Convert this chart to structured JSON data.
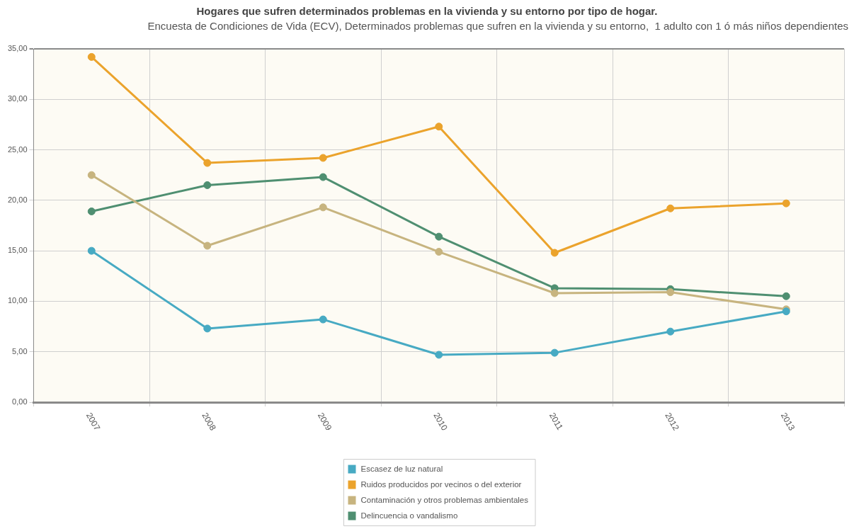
{
  "chart_data": {
    "type": "line",
    "title": "Hogares que sufren determinados problemas en la vivienda y su entorno por tipo de hogar.",
    "subtitle": "Encuesta de Condiciones de Vida (ECV), Determinados problemas que sufren en la vivienda y su entorno,  1 adulto con 1 ó más niños dependientes",
    "categories": [
      "2007",
      "2008",
      "2009",
      "2010",
      "2011",
      "2012",
      "2013"
    ],
    "series": [
      {
        "name": "Escasez de luz natural",
        "color": "#47aac3",
        "values": [
          15.0,
          7.3,
          8.2,
          4.7,
          4.9,
          7.0,
          9.0
        ]
      },
      {
        "name": "Ruidos producidos por vecinos o del exterior",
        "color": "#eba32c",
        "values": [
          34.2,
          23.7,
          24.2,
          27.3,
          14.8,
          19.2,
          19.7
        ]
      },
      {
        "name": "Contaminación y otros problemas ambientales",
        "color": "#c7b47f",
        "values": [
          22.5,
          15.5,
          19.3,
          14.9,
          10.8,
          10.9,
          9.2
        ]
      },
      {
        "name": "Delincuencia o vandalismo",
        "color": "#4f8f71",
        "values": [
          18.9,
          21.5,
          22.3,
          16.4,
          11.3,
          11.2,
          10.5
        ]
      }
    ],
    "ylim": [
      0,
      35
    ],
    "yticks": [
      {
        "value": 0,
        "label": "0,00"
      },
      {
        "value": 5,
        "label": "5,00"
      },
      {
        "value": 10,
        "label": "10,00"
      },
      {
        "value": 15,
        "label": "15,00"
      },
      {
        "value": 20,
        "label": "20,00"
      },
      {
        "value": 25,
        "label": "25,00"
      },
      {
        "value": 30,
        "label": "30,00"
      },
      {
        "value": 35,
        "label": "35,00"
      }
    ],
    "grid": true,
    "legend": "bottom",
    "marker": "circle"
  }
}
